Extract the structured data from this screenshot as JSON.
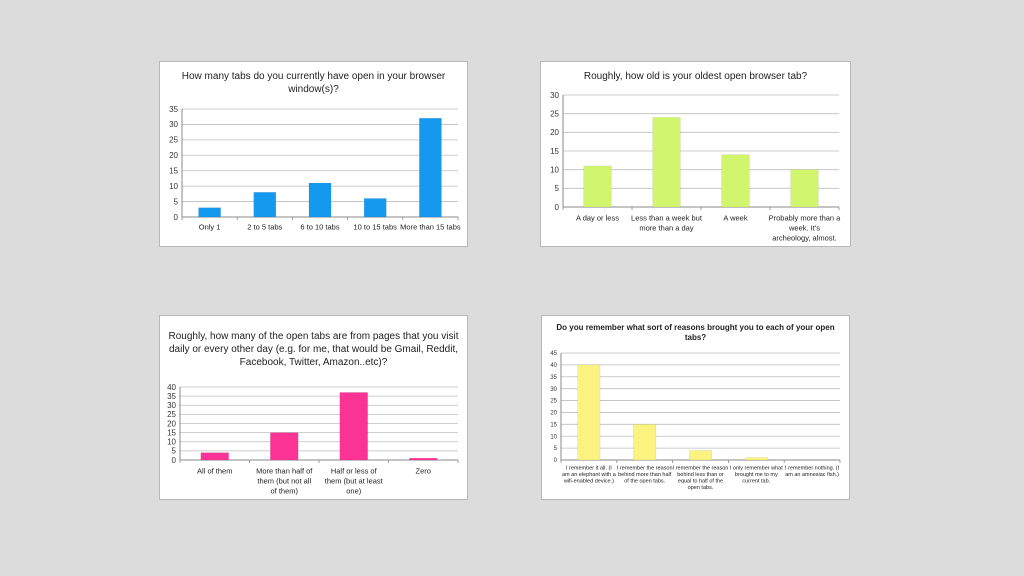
{
  "charts": [
    {
      "type": "bar",
      "title": "How many tabs do you currently have open in your browser window(s)?",
      "categories": [
        "Only 1",
        "2 to 5 tabs",
        "6 to 10 tabs",
        "10  to 15 tabs",
        "More than 15 tabs"
      ],
      "values": [
        3,
        8,
        11,
        6,
        32
      ],
      "ylim": [
        0,
        35
      ],
      "yticks": [
        0,
        5,
        10,
        15,
        20,
        25,
        30,
        35
      ],
      "color": "#1499ee",
      "grid": true,
      "legend": "none"
    },
    {
      "type": "bar",
      "title": "Roughly, how old is your oldest open browser tab?",
      "categories": [
        "A day or less",
        "Less than a week but more than a day",
        "A week",
        "Probably more than a week. It's archeology, almost."
      ],
      "values": [
        11,
        24,
        14,
        10
      ],
      "ylim": [
        0,
        30
      ],
      "yticks": [
        0,
        5,
        10,
        15,
        20,
        25,
        30
      ],
      "color": "#d2f56e",
      "grid": true,
      "legend": "none"
    },
    {
      "type": "bar",
      "title": "Roughly, how many of the open tabs are from pages that you visit daily or every other day (e.g. for me, that would be Gmail, Reddit, Facebook, Twitter, Amazon..etc)?",
      "categories": [
        "All of them",
        "More than half of them (but not all of them)",
        "Half or less of them (but at least one)",
        "Zero"
      ],
      "values": [
        4,
        15,
        37,
        1
      ],
      "ylim": [
        0,
        40
      ],
      "yticks": [
        0,
        5,
        10,
        15,
        20,
        25,
        30,
        35,
        40
      ],
      "color": "#fb3394",
      "grid": true,
      "legend": "none"
    },
    {
      "type": "bar",
      "title": "Do you remember what sort of reasons brought you to each of your open tabs?",
      "categories": [
        "I remember it all. (I am an elephant with a wifi-enabled device.)",
        "I remember the reason behind more than half of the open tabs.",
        "I remember the reason behind less than or equal to half of the open tabs.",
        "I only remember what brought me to my current tab.",
        "I remember nothing. (I am an amnesiac fish.)"
      ],
      "values": [
        40,
        15,
        4,
        1,
        0
      ],
      "ylim": [
        0,
        45
      ],
      "yticks": [
        0,
        5,
        10,
        15,
        20,
        25,
        30,
        35,
        40,
        45
      ],
      "color": "#fbf37f",
      "grid": true,
      "legend": "none"
    }
  ]
}
